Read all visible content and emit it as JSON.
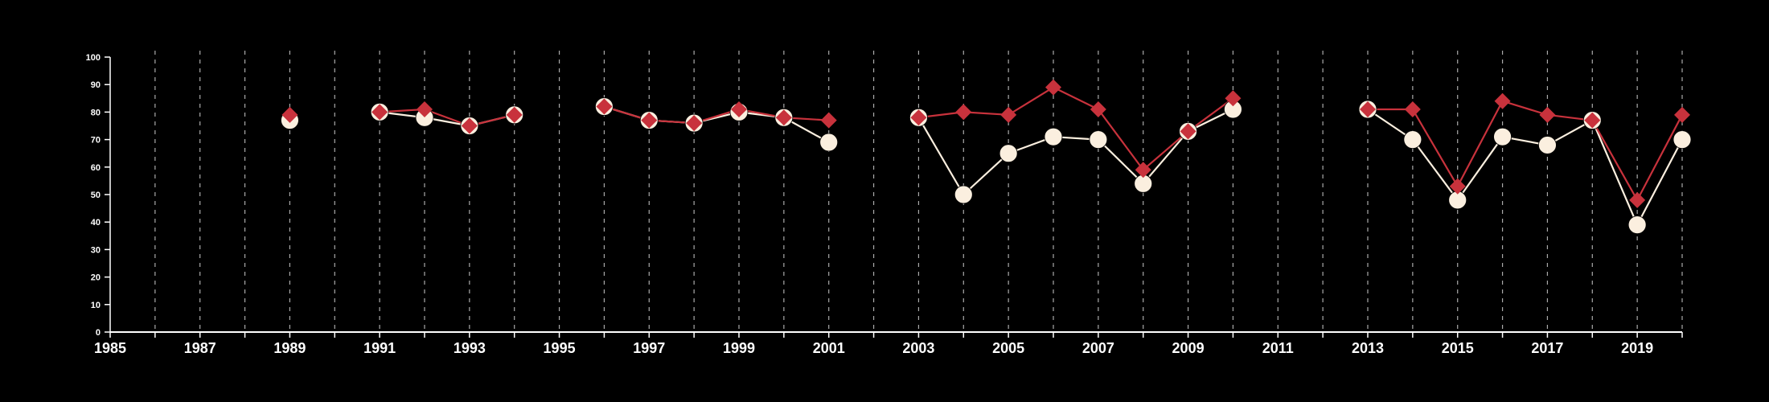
{
  "chart_data": {
    "type": "line",
    "x_range": [
      1985,
      2020
    ],
    "y_range": [
      0,
      100
    ],
    "x_tick_labels": [
      "1985",
      "1987",
      "1989",
      "1991",
      "1993",
      "1995",
      "1997",
      "1999",
      "2001",
      "2003",
      "2005",
      "2007",
      "2009",
      "2011",
      "2013",
      "2015",
      "2017",
      "2019"
    ],
    "y_tick_labels": [
      "0",
      "10",
      "20",
      "30",
      "40",
      "50",
      "60",
      "70",
      "80",
      "90",
      "100"
    ],
    "vertical_dashed_grid": true,
    "legend": null,
    "series": [
      {
        "color": "#fbefdf",
        "marker": "circle",
        "x": [
          1989,
          1990,
          1991,
          1992,
          1993,
          1994,
          1995,
          1996,
          1997,
          1998,
          1999,
          2000,
          2001,
          2002,
          2003,
          2004,
          2005,
          2006,
          2007,
          2008,
          2009,
          2010,
          2011,
          2012,
          2013,
          2014,
          2015,
          2016,
          2017,
          2018,
          2019,
          2020
        ],
        "y": [
          77,
          null,
          80,
          78,
          75,
          79,
          null,
          82,
          77,
          76,
          80,
          78,
          69,
          null,
          78,
          50,
          65,
          71,
          70,
          54,
          73,
          81,
          null,
          null,
          81,
          70,
          48,
          71,
          68,
          77,
          39,
          70
        ]
      },
      {
        "color": "#c8323c",
        "marker": "diamond",
        "x": [
          1989,
          1990,
          1991,
          1992,
          1993,
          1994,
          1995,
          1996,
          1997,
          1998,
          1999,
          2000,
          2001,
          2002,
          2003,
          2004,
          2005,
          2006,
          2007,
          2008,
          2009,
          2010,
          2011,
          2012,
          2013,
          2014,
          2015,
          2016,
          2017,
          2018,
          2019,
          2020
        ],
        "y": [
          79,
          null,
          80,
          81,
          75,
          79,
          null,
          82,
          77,
          76,
          81,
          78,
          77,
          null,
          78,
          80,
          79,
          89,
          81,
          59,
          73,
          85,
          null,
          null,
          81,
          81,
          53,
          84,
          79,
          77,
          48,
          79
        ]
      }
    ]
  }
}
